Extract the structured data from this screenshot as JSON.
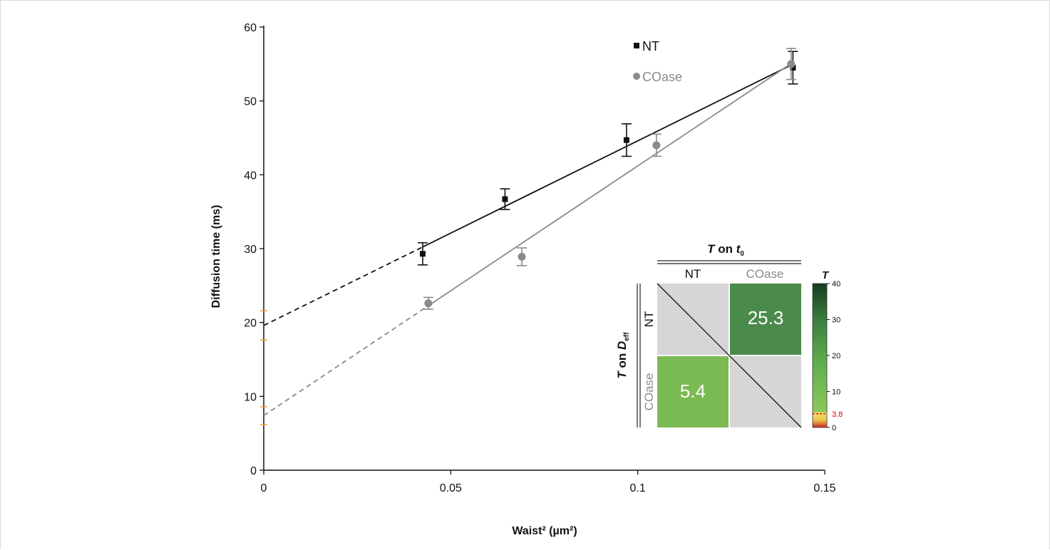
{
  "colors": {
    "NT": "#111111",
    "COase": "#8a8a8a",
    "intercept_marker": "#f0a030",
    "heatmap_diag": "#d6d6d6",
    "threshold": "#e00000"
  },
  "chart_data": [
    {
      "type": "scatter",
      "xlabel": "Waist² (µm²)",
      "ylabel": "Diffusion time (ms)",
      "xlim": [
        0,
        0.15
      ],
      "ylim": [
        0,
        60
      ],
      "xticks": [
        "0",
        "0.05",
        "0.1",
        "0.15"
      ],
      "yticks": [
        "0",
        "10",
        "20",
        "30",
        "40",
        "50",
        "60"
      ],
      "legend_position": "top-right",
      "series": [
        {
          "name": "NT",
          "marker": "square",
          "points": [
            {
              "x": 0.0425,
              "y": 29.3,
              "err": 1.5
            },
            {
              "x": 0.0645,
              "y": 36.7,
              "err": 1.4
            },
            {
              "x": 0.097,
              "y": 44.7,
              "err": 2.2
            },
            {
              "x": 0.1415,
              "y": 54.5,
              "err": 2.2
            }
          ],
          "fit": {
            "intercept": 19.6,
            "slope": 250
          },
          "intercept_ci": [
            17.6,
            21.6
          ]
        },
        {
          "name": "COase",
          "marker": "circle",
          "points": [
            {
              "x": 0.044,
              "y": 22.6,
              "err": 0.8
            },
            {
              "x": 0.069,
              "y": 28.9,
              "err": 1.2
            },
            {
              "x": 0.105,
              "y": 44.0,
              "err": 1.5
            },
            {
              "x": 0.141,
              "y": 55.0,
              "err": 2.1
            }
          ],
          "fit": {
            "intercept": 7.4,
            "slope": 338
          },
          "intercept_ci": [
            6.2,
            8.6
          ]
        }
      ]
    },
    {
      "type": "heatmap",
      "title_prefix": "T",
      "title_mid": " on ",
      "title_var": "t",
      "title_sub": "0",
      "row_title_prefix": "T",
      "row_title_mid": " on ",
      "row_title_var": "D",
      "row_title_sub": "eff",
      "columns": [
        "NT",
        "COase"
      ],
      "rows": [
        "NT",
        "COase"
      ],
      "cells": [
        {
          "row": "NT",
          "col": "COase",
          "value": "25.3",
          "color": "#4a8a4a"
        },
        {
          "row": "COase",
          "col": "NT",
          "value": "5.4",
          "color": "#7bba52"
        }
      ],
      "colorbar": {
        "label": "T",
        "range": [
          0,
          40
        ],
        "ticks": [
          "0",
          "10",
          "20",
          "30",
          "40"
        ],
        "threshold": 3.8,
        "threshold_label": "3.8"
      }
    }
  ]
}
